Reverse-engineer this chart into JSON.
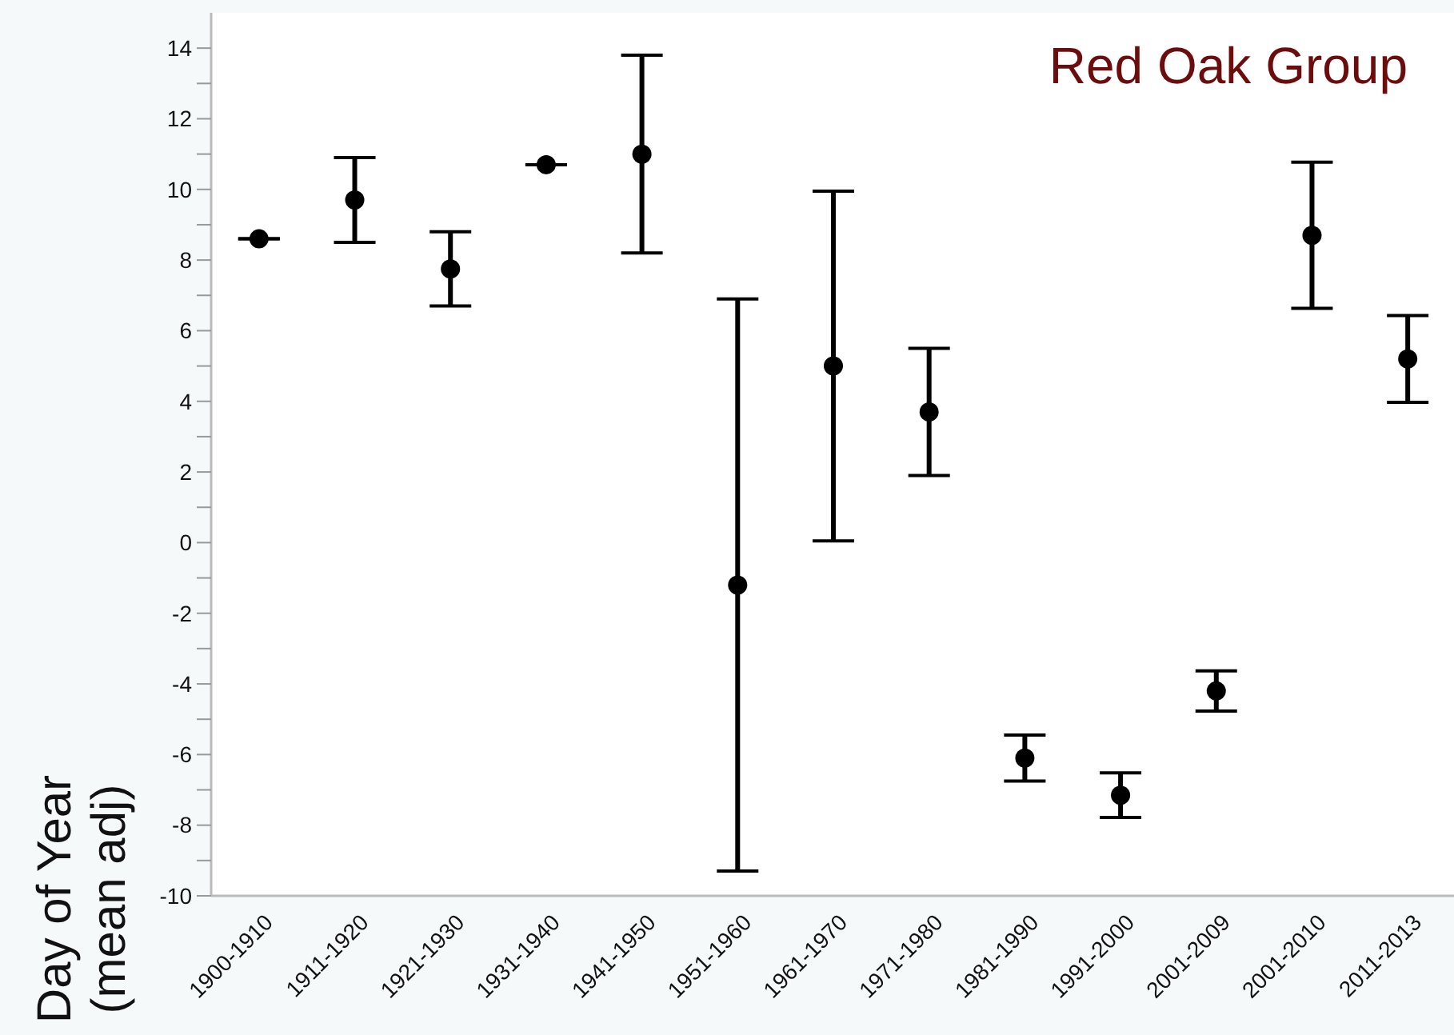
{
  "chart_data": {
    "type": "scatter",
    "title": "Red Oak Group",
    "ylabel": "Day of Year\n(mean adj)",
    "categories": [
      "1900-1910",
      "1911-1920",
      "1921-1930",
      "1931-1940",
      "1941-1950",
      "1951-1960",
      "1961-1970",
      "1971-1980",
      "1981-1990",
      "1991-2000",
      "2001-2009",
      "2001-2010",
      "2011-2013"
    ],
    "series": [
      {
        "color": "#000000",
        "values": [
          8.6,
          9.7,
          7.75,
          10.7,
          11.0,
          -1.2,
          5.0,
          3.7,
          -6.1,
          -7.15,
          -4.2,
          8.7,
          5.2
        ],
        "errors": [
          0,
          1.2,
          1.05,
          0,
          2.8,
          8.1,
          4.95,
          1.8,
          0.65,
          0.63,
          0.57,
          2.07,
          1.23
        ]
      }
    ],
    "ylim": [
      -10,
      15
    ],
    "yticks": [
      -10,
      {
        "value": -9,
        "label": null
      },
      -8,
      {
        "value": -7,
        "label": null
      },
      -6,
      {
        "value": -5,
        "label": null
      },
      -4,
      {
        "value": -3,
        "label": null
      },
      -2,
      {
        "value": -1,
        "label": null
      },
      0,
      {
        "value": 1,
        "label": null
      },
      2,
      {
        "value": 3,
        "label": null
      },
      4,
      {
        "value": 5,
        "label": null
      },
      6,
      {
        "value": 7,
        "label": null
      },
      8,
      {
        "value": 9,
        "label": null
      },
      10,
      {
        "value": 11,
        "label": null
      },
      12,
      {
        "value": 13,
        "label": null
      },
      14
    ],
    "grid": false,
    "marker": "circle"
  }
}
